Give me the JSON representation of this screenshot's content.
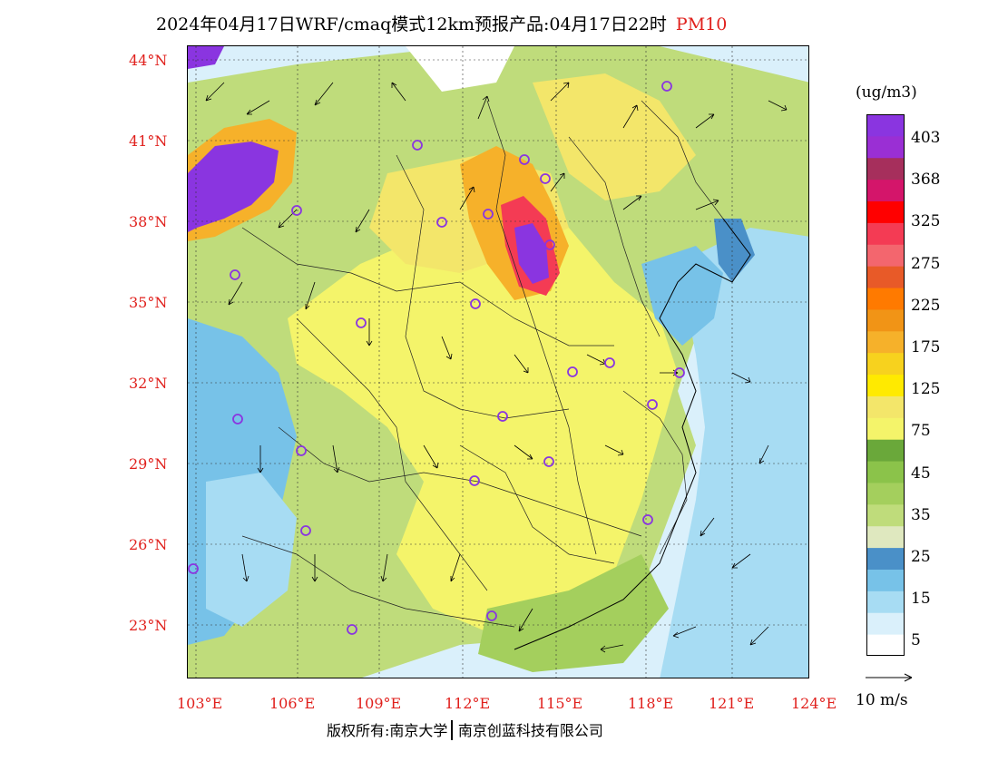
{
  "title": {
    "text": "2024年04月17日WRF/cmaq模式12km预报产品:04月17日22时",
    "variable": "PM10"
  },
  "map": {
    "lat_labels": [
      "44°N",
      "41°N",
      "38°N",
      "35°N",
      "32°N",
      "29°N",
      "26°N",
      "23°N"
    ],
    "lon_labels": [
      "103°E",
      "106°E",
      "109°E",
      "112°E",
      "115°E",
      "118°E",
      "121°E",
      "124°E"
    ]
  },
  "colorbar": {
    "unit": "(ug/m3)",
    "labels": [
      "403",
      "368",
      "325",
      "275",
      "225",
      "175",
      "125",
      "75",
      "45",
      "35",
      "25",
      "15",
      "5"
    ],
    "colors": [
      "#ffffff",
      "#daf0fb",
      "#a7dcf3",
      "#77c2e8",
      "#4a90c8",
      "#dfe8bf",
      "#bfdc7b",
      "#a4cf5d",
      "#8bc34a",
      "#6aa83a",
      "#f4f46a",
      "#f3e66a",
      "#ffea00",
      "#f7d21e",
      "#f6b12a",
      "#f19416",
      "#ff7a00",
      "#e85a28",
      "#f3666e",
      "#f43b54",
      "#ff0000",
      "#d4156a",
      "#a62f5c",
      "#9a2fd4",
      "#8a35e0"
    ]
  },
  "wind_scale": {
    "label": "10 m/s"
  },
  "footer": {
    "left": "版权所有:南京大学",
    "right": "南京创蓝科技有限公司"
  }
}
